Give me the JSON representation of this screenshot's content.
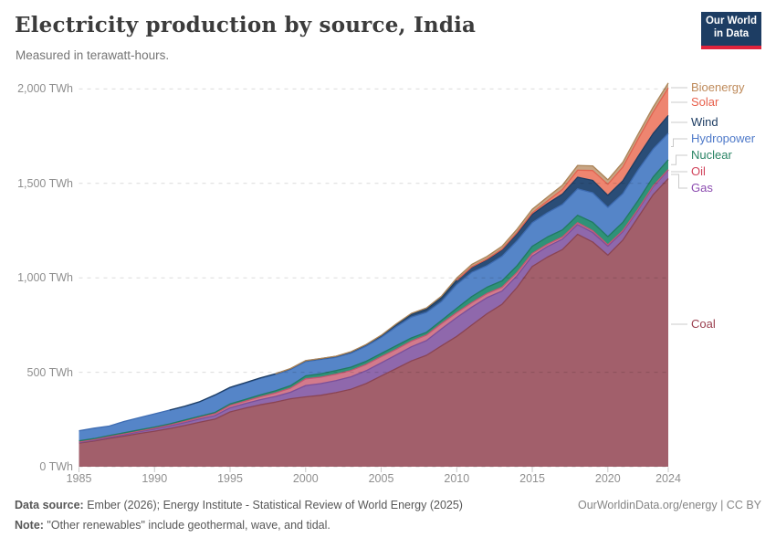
{
  "header": {
    "title": "Electricity production by source, India",
    "subtitle": "Measured in terawatt-hours."
  },
  "logo": {
    "line1": "Our World",
    "line2": "in Data",
    "bg_color": "#1d3d63",
    "accent_color": "#e0233c"
  },
  "footer": {
    "source_label": "Data source:",
    "source_text": " Ember (2026); Energy Institute - Statistical Review of World Energy (2025)",
    "note_label": "Note:",
    "note_text": " \"Other renewables\" include geothermal, wave, and tidal.",
    "attribution": "OurWorldinData.org/energy | CC BY"
  },
  "chart_data": {
    "type": "area",
    "stacked": true,
    "title": "Electricity production by source, India",
    "unit": "TWh",
    "grid": "dashed",
    "legend_position": "right",
    "ylim": [
      0,
      2000
    ],
    "xlim": [
      1985,
      2024
    ],
    "x": [
      1985,
      1986,
      1987,
      1988,
      1989,
      1990,
      1991,
      1992,
      1993,
      1994,
      1995,
      1996,
      1997,
      1998,
      1999,
      2000,
      2001,
      2002,
      2003,
      2004,
      2005,
      2006,
      2007,
      2008,
      2009,
      2010,
      2011,
      2012,
      2013,
      2014,
      2015,
      2016,
      2017,
      2018,
      2019,
      2020,
      2021,
      2022,
      2023,
      2024
    ],
    "x_ticks": [
      {
        "year": 1985,
        "label": "1985"
      },
      {
        "year": 1990,
        "label": "1990"
      },
      {
        "year": 1995,
        "label": "1995"
      },
      {
        "year": 2000,
        "label": "2000"
      },
      {
        "year": 2005,
        "label": "2005"
      },
      {
        "year": 2010,
        "label": "2010"
      },
      {
        "year": 2015,
        "label": "2015"
      },
      {
        "year": 2020,
        "label": "2020"
      },
      {
        "year": 2024,
        "label": "2024"
      }
    ],
    "y_ticks": [
      {
        "value": 0,
        "label": "0 TWh"
      },
      {
        "value": 500,
        "label": "500 TWh"
      },
      {
        "value": 1000,
        "label": "1,000 TWh"
      },
      {
        "value": 1500,
        "label": "1,500 TWh"
      },
      {
        "value": 2000,
        "label": "2,000 TWh"
      }
    ],
    "series": [
      {
        "name": "Coal",
        "fill": "#a25f6b",
        "stroke": "#8a4453",
        "label_color": "#9a3e4e",
        "values": [
          125,
          136,
          150,
          162,
          176,
          188,
          202,
          218,
          236,
          252,
          290,
          310,
          328,
          342,
          360,
          370,
          378,
          392,
          410,
          440,
          480,
          520,
          560,
          590,
          640,
          690,
          750,
          810,
          860,
          950,
          1060,
          1110,
          1150,
          1230,
          1190,
          1120,
          1200,
          1320,
          1440,
          1525
        ]
      },
      {
        "name": "Gas",
        "fill": "#8f68ac",
        "stroke": "#7a4f99",
        "label_color": "#8c4cb0",
        "values": [
          3,
          4,
          5,
          7,
          9,
          11,
          13,
          15,
          17,
          19,
          22,
          24,
          27,
          30,
          34,
          60,
          62,
          64,
          66,
          68,
          70,
          72,
          75,
          78,
          90,
          100,
          95,
          85,
          70,
          62,
          55,
          56,
          55,
          52,
          50,
          48,
          44,
          38,
          42,
          45
        ]
      },
      {
        "name": "Oil",
        "fill": "#d27a8c",
        "stroke": "#c25672",
        "label_color": "#d1435b",
        "values": [
          4,
          4,
          5,
          5,
          5,
          5,
          6,
          7,
          8,
          10,
          12,
          13,
          15,
          18,
          22,
          35,
          34,
          34,
          33,
          33,
          32,
          30,
          30,
          29,
          28,
          26,
          24,
          22,
          20,
          17,
          14,
          12,
          11,
          10,
          9,
          7,
          6,
          5,
          4,
          3
        ]
      },
      {
        "name": "Nuclear",
        "fill": "#2f9278",
        "stroke": "#217a62",
        "label_color": "#2a8465",
        "values": [
          5,
          5,
          5,
          6,
          5,
          6,
          6,
          7,
          6,
          6,
          8,
          9,
          10,
          12,
          13,
          16,
          18,
          19,
          18,
          17,
          17,
          19,
          17,
          15,
          17,
          23,
          32,
          33,
          34,
          36,
          38,
          38,
          38,
          39,
          45,
          43,
          44,
          46,
          48,
          52
        ]
      },
      {
        "name": "Hydropower",
        "fill": "#5585c8",
        "stroke": "#3e6cb2",
        "label_color": "#4f7ac9",
        "values": [
          53,
          55,
          50,
          60,
          65,
          70,
          73,
          72,
          77,
          91,
          85,
          86,
          87,
          86,
          86,
          76,
          76,
          70,
          74,
          80,
          85,
          100,
          110,
          105,
          100,
          125,
          128,
          115,
          130,
          132,
          125,
          129,
          135,
          140,
          156,
          155,
          152,
          162,
          148,
          140
        ]
      },
      {
        "name": "Wind",
        "fill": "#2a4d77",
        "stroke": "#1d3d63",
        "label_color": "#1d3d63",
        "values": [
          0,
          0,
          0,
          0,
          0,
          0,
          0,
          1,
          1,
          2,
          3,
          3,
          3,
          4,
          4,
          4,
          4,
          5,
          6,
          7,
          9,
          12,
          15,
          17,
          20,
          23,
          27,
          31,
          34,
          38,
          43,
          48,
          55,
          62,
          66,
          64,
          68,
          71,
          82,
          95
        ]
      },
      {
        "name": "Solar",
        "fill": "#ee8570",
        "stroke": "#e06350",
        "label_color": "#e8604c",
        "values": [
          0,
          0,
          0,
          0,
          0,
          0,
          0,
          0,
          0,
          0,
          0,
          0,
          0,
          0,
          0,
          0,
          0,
          0,
          0,
          0,
          0,
          0,
          0,
          0,
          0,
          0,
          2,
          3,
          4,
          6,
          9,
          14,
          24,
          37,
          52,
          58,
          73,
          92,
          113,
          145
        ]
      },
      {
        "name": "Bioenergy",
        "fill": "#c7a584",
        "stroke": "#ab8458",
        "label_color": "#be8a5a",
        "values": [
          0,
          0,
          0,
          0,
          0,
          0,
          0,
          0,
          0,
          0,
          0,
          0,
          0,
          0,
          1,
          1,
          1,
          1,
          2,
          2,
          3,
          4,
          5,
          7,
          9,
          12,
          13,
          14,
          15,
          17,
          19,
          21,
          23,
          25,
          25,
          24,
          25,
          26,
          27,
          27
        ]
      }
    ],
    "legend": [
      {
        "name": "Bioenergy",
        "label": "Bioenergy",
        "y": 96
      },
      {
        "name": "Solar",
        "label": "Solar",
        "y": 112
      },
      {
        "name": "Wind",
        "label": "Wind",
        "y": 134
      },
      {
        "name": "Hydropower",
        "label": "Hydropower",
        "y": 152
      },
      {
        "name": "Nuclear",
        "label": "Nuclear",
        "y": 170
      },
      {
        "name": "Oil",
        "label": "Oil",
        "y": 188
      },
      {
        "name": "Gas",
        "label": "Gas",
        "y": 206
      },
      {
        "name": "Coal",
        "label": "Coal",
        "y": 355
      }
    ]
  }
}
